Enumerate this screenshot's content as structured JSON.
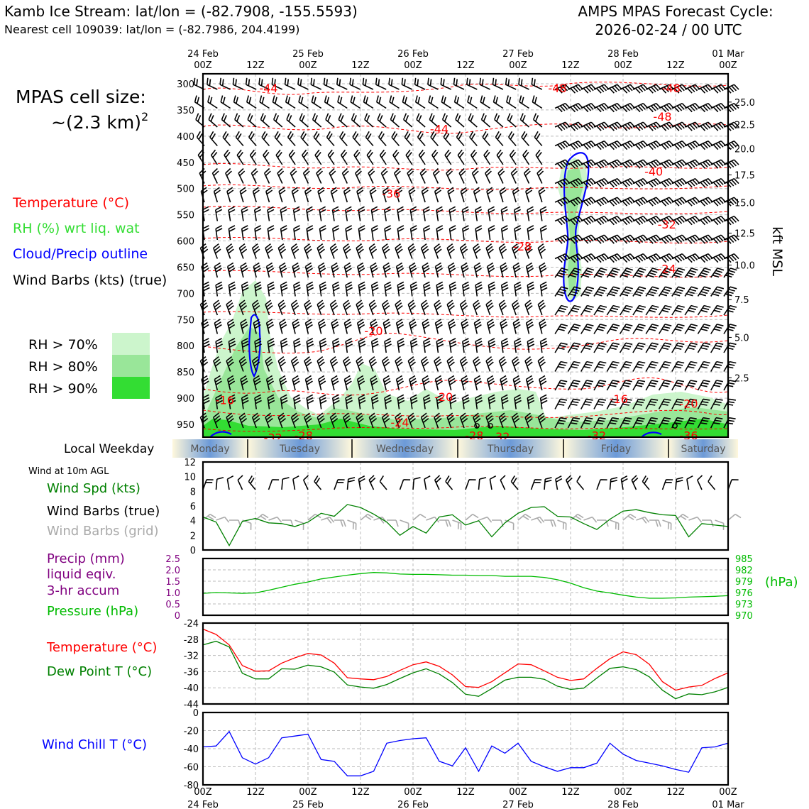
{
  "header": {
    "title_left": "Kamb Ice Stream: lat/lon = (-82.7908, -155.5593)",
    "subtitle_left": "Nearest cell 109039: lat/lon = (-82.7986, 204.4199)",
    "title_right_1": "AMPS MPAS Forecast Cycle:",
    "title_right_2": "2026-02-24 / 00 UTC"
  },
  "time_axis": {
    "top_labels": [
      {
        "line1": "24 Feb",
        "line2": "00Z"
      },
      {
        "line1": "",
        "line2": "12Z"
      },
      {
        "line1": "25 Feb",
        "line2": "00Z"
      },
      {
        "line1": "",
        "line2": "12Z"
      },
      {
        "line1": "26 Feb",
        "line2": "00Z"
      },
      {
        "line1": "",
        "line2": "12Z"
      },
      {
        "line1": "27 Feb",
        "line2": "00Z"
      },
      {
        "line1": "",
        "line2": "12Z"
      },
      {
        "line1": "28 Feb",
        "line2": "00Z"
      },
      {
        "line1": "",
        "line2": "12Z"
      },
      {
        "line1": "01 Mar",
        "line2": "00Z"
      }
    ],
    "bottom_labels": [
      {
        "line1": "00Z",
        "line2": "24 Feb"
      },
      {
        "line1": "12Z",
        "line2": ""
      },
      {
        "line1": "00Z",
        "line2": "25 Feb"
      },
      {
        "line1": "12Z",
        "line2": ""
      },
      {
        "line1": "00Z",
        "line2": "26 Feb"
      },
      {
        "line1": "12Z",
        "line2": ""
      },
      {
        "line1": "00Z",
        "line2": "27 Feb"
      },
      {
        "line1": "12Z",
        "line2": ""
      },
      {
        "line1": "00Z",
        "line2": "28 Feb"
      },
      {
        "line1": "12Z",
        "line2": ""
      },
      {
        "line1": "00Z",
        "line2": "01 Mar"
      }
    ]
  },
  "legend": {
    "cell_size_line1": "MPAS cell size:",
    "cell_size_line2": "~(2.3 km)",
    "cell_size_sup": "2",
    "items": [
      {
        "label": "Temperature (°C)",
        "color": "#ff0000"
      },
      {
        "label": "RH (%) wrt liq. wat",
        "color": "#33dd33"
      },
      {
        "label": "Cloud/Precip outline",
        "color": "#0000ff"
      },
      {
        "label": "Wind Barbs (kts) (true)",
        "color": "#000000"
      }
    ],
    "rh_levels": [
      {
        "label": "RH > 70%",
        "color": "#ccf5cc"
      },
      {
        "label": "RH > 80%",
        "color": "#99e699"
      },
      {
        "label": "RH > 90%",
        "color": "#33dd33"
      }
    ]
  },
  "weekday_strip": {
    "label": "Local Weekday",
    "days": [
      "Monday",
      "Tuesday",
      "Wednesday",
      "Thursday",
      "Friday",
      "Saturday"
    ]
  },
  "panel_labels": {
    "wind_10m_header": "Wind at 10m AGL",
    "wind_speed": "Wind Spd (kts)",
    "wind_barbs_true": "Wind Barbs (true)",
    "wind_barbs_grid": "Wind Barbs (grid)",
    "precip_line1": "Precip (mm)",
    "precip_line2": "liquid eqiv.",
    "precip_line3": "3-hr accum",
    "pressure": "Pressure (hPa)",
    "pressure_unit": "(hPa)",
    "temperature": "Temperature (°C)",
    "dewpoint": "Dew Point T (°C)",
    "windchill": "Wind Chill T (°C)",
    "kft_msl": "kft MSL"
  },
  "colors": {
    "temperature": "#ff0000",
    "dewpoint": "#008000",
    "wind_speed": "#008000",
    "pressure": "#00bb00",
    "precip_label": "#800080",
    "windchill": "#0000ff",
    "cloud_outline": "#0000ff",
    "grid_barbs": "#aaaaaa"
  },
  "chart_data": [
    {
      "type": "heatmap",
      "name": "time-height cross section",
      "x_hours": [
        0,
        120
      ],
      "pressure_ticks": [
        300,
        350,
        400,
        450,
        500,
        550,
        600,
        650,
        700,
        750,
        800,
        850,
        900,
        950
      ],
      "kft_ticks": [
        {
          "kft": "25.0",
          "p": 335
        },
        {
          "kft": "22.5",
          "p": 378
        },
        {
          "kft": "20.0",
          "p": 424
        },
        {
          "kft": "17.5",
          "p": 474
        },
        {
          "kft": "15.0",
          "p": 527
        },
        {
          "kft": "12.5",
          "p": 585
        },
        {
          "kft": "10.0",
          "p": 646
        },
        {
          "kft": "7.5",
          "p": 712
        },
        {
          "kft": "5.0",
          "p": 784
        },
        {
          "kft": "2.5",
          "p": 861
        }
      ],
      "temp_contour_labels": [
        {
          "text": "-44",
          "t": 15,
          "p": 308
        },
        {
          "text": "-48",
          "t": 81,
          "p": 308
        },
        {
          "text": "-48",
          "t": 107,
          "p": 308
        },
        {
          "text": "-48",
          "t": 105,
          "p": 362
        },
        {
          "text": "-44",
          "t": 54,
          "p": 386
        },
        {
          "text": "-40",
          "t": 103,
          "p": 467
        },
        {
          "text": "-36",
          "t": 43,
          "p": 509
        },
        {
          "text": "-32",
          "t": 106,
          "p": 568
        },
        {
          "text": "-28",
          "t": 73,
          "p": 610
        },
        {
          "text": "-24",
          "t": 106,
          "p": 653
        },
        {
          "text": "-20",
          "t": 39,
          "p": 771
        },
        {
          "text": "-20",
          "t": 55,
          "p": 897
        },
        {
          "text": "-16",
          "t": 5,
          "p": 903
        },
        {
          "text": "-16",
          "t": 95,
          "p": 901
        },
        {
          "text": "-20",
          "t": 111,
          "p": 910
        },
        {
          "text": "-24",
          "t": 45,
          "p": 946
        },
        {
          "text": "-28",
          "t": 23,
          "p": 971
        },
        {
          "text": "-28",
          "t": 62,
          "p": 971
        },
        {
          "text": "-32",
          "t": 68,
          "p": 973
        },
        {
          "text": "-32",
          "t": 90,
          "p": 971
        },
        {
          "text": "-36",
          "t": 111,
          "p": 971
        },
        {
          "text": "-32",
          "t": 16,
          "p": 975
        }
      ]
    },
    {
      "type": "line",
      "name": "wind-speed-10m",
      "ylabel": "",
      "ylim": [
        0,
        12
      ],
      "yticks": [
        0,
        2,
        4,
        6,
        8,
        10,
        12
      ],
      "x": [
        0,
        3,
        6,
        9,
        12,
        15,
        18,
        21,
        24,
        27,
        30,
        33,
        36,
        39,
        42,
        45,
        48,
        51,
        54,
        57,
        60,
        63,
        66,
        69,
        72,
        75,
        78,
        81,
        84,
        87,
        90,
        93,
        96,
        99,
        102,
        105,
        108,
        111,
        114,
        117,
        120
      ],
      "series": [
        {
          "name": "Wind Spd (kts)",
          "values": [
            4.5,
            3.8,
            0.6,
            3.9,
            4.3,
            3.7,
            3.6,
            3.2,
            3.8,
            5.0,
            4.6,
            6.2,
            5.8,
            4.9,
            3.8,
            2.0,
            3.2,
            2.3,
            4.5,
            4.8,
            3.4,
            4.0,
            1.8,
            3.7,
            5.0,
            5.8,
            5.9,
            4.6,
            4.5,
            3.6,
            2.8,
            4.2,
            5.3,
            5.5,
            5.1,
            4.8,
            4.7,
            1.8,
            3.6,
            3.4,
            3.2
          ]
        }
      ]
    },
    {
      "type": "line",
      "name": "precip-pressure",
      "ylim_precip": [
        0,
        2.5
      ],
      "precip_ticks": [
        "0",
        "0.5",
        "1.0",
        "1.5",
        "2.0",
        "2.5"
      ],
      "ylim_pressure": [
        970,
        985
      ],
      "pressure_ticks": [
        970,
        973,
        976,
        979,
        982,
        985
      ],
      "x": [
        0,
        3,
        6,
        9,
        12,
        15,
        18,
        21,
        24,
        27,
        30,
        33,
        36,
        39,
        42,
        45,
        48,
        51,
        54,
        57,
        60,
        63,
        66,
        69,
        72,
        75,
        78,
        81,
        84,
        87,
        90,
        93,
        96,
        99,
        102,
        105,
        108,
        111,
        114,
        117,
        120
      ],
      "series": [
        {
          "name": "Pressure (hPa)",
          "values": [
            975.8,
            976.0,
            975.9,
            975.8,
            975.9,
            976.6,
            977.4,
            978.2,
            978.8,
            979.6,
            980.1,
            980.6,
            981.0,
            981.3,
            981.2,
            980.9,
            980.8,
            980.8,
            980.7,
            980.6,
            980.6,
            980.5,
            980.5,
            980.3,
            980.3,
            980.3,
            980.0,
            979.4,
            978.5,
            977.3,
            976.4,
            975.9,
            975.3,
            974.8,
            974.5,
            974.5,
            974.6,
            974.8,
            974.9,
            975.0,
            975.2
          ]
        }
      ]
    },
    {
      "type": "line",
      "name": "temperature-dewpoint",
      "ylim": [
        -44,
        -24
      ],
      "yticks": [
        -24,
        -28,
        -32,
        -36,
        -40,
        -44
      ],
      "x": [
        0,
        3,
        6,
        9,
        12,
        15,
        18,
        21,
        24,
        27,
        30,
        33,
        36,
        39,
        42,
        45,
        48,
        51,
        54,
        57,
        60,
        63,
        66,
        69,
        72,
        75,
        78,
        81,
        84,
        87,
        90,
        93,
        96,
        99,
        102,
        105,
        108,
        111,
        114,
        117,
        120
      ],
      "series": [
        {
          "name": "Temperature (°C)",
          "values": [
            -25.5,
            -26.8,
            -29.4,
            -34.5,
            -35.9,
            -35.8,
            -33.9,
            -32.6,
            -31.5,
            -31.9,
            -33.9,
            -37.5,
            -37.8,
            -38.0,
            -37.2,
            -35.7,
            -34.3,
            -33.6,
            -34.7,
            -36.8,
            -39.7,
            -39.9,
            -38.5,
            -36.3,
            -34.1,
            -34.3,
            -35.8,
            -37.4,
            -38.2,
            -37.8,
            -35.2,
            -32.8,
            -31.1,
            -31.8,
            -34.2,
            -38.5,
            -40.6,
            -39.8,
            -39.4,
            -37.7,
            -36.3
          ]
        },
        {
          "name": "Dew Point T (°C)",
          "values": [
            -29.4,
            -28.5,
            -29.9,
            -36.4,
            -37.8,
            -37.8,
            -35.3,
            -35.4,
            -34.4,
            -34.8,
            -36.1,
            -39.3,
            -39.8,
            -40.1,
            -39.2,
            -37.7,
            -36.3,
            -35.3,
            -36.6,
            -38.7,
            -41.6,
            -42.1,
            -40.2,
            -38.1,
            -37.4,
            -37.4,
            -37.9,
            -39.6,
            -40.4,
            -40.1,
            -37.6,
            -35.2,
            -34.8,
            -35.5,
            -37.3,
            -40.6,
            -42.7,
            -41.5,
            -41.7,
            -41.0,
            -39.9
          ]
        }
      ]
    },
    {
      "type": "line",
      "name": "wind-chill",
      "ylim": [
        -80,
        0
      ],
      "yticks": [
        0,
        -20,
        -40,
        -60,
        -80
      ],
      "x": [
        0,
        3,
        6,
        9,
        12,
        15,
        18,
        21,
        24,
        27,
        30,
        33,
        36,
        39,
        42,
        45,
        48,
        51,
        54,
        57,
        60,
        63,
        66,
        69,
        72,
        75,
        78,
        81,
        84,
        87,
        90,
        93,
        96,
        99,
        102,
        105,
        108,
        111,
        114,
        117,
        120
      ],
      "series": [
        {
          "name": "Wind Chill T (°C)",
          "values": [
            -38,
            -37,
            -21,
            -50,
            -57,
            -50,
            -28,
            -26,
            -24,
            -52,
            -54,
            -70,
            -70,
            -65,
            -34,
            -31,
            -29,
            -28,
            -54,
            -59,
            -39,
            -65,
            -37,
            -45,
            -34,
            -54,
            -60,
            -65,
            -61,
            -61,
            -56,
            -34,
            -46,
            -53,
            -56,
            -59,
            -63,
            -66,
            -39,
            -38,
            -34
          ]
        }
      ]
    }
  ]
}
